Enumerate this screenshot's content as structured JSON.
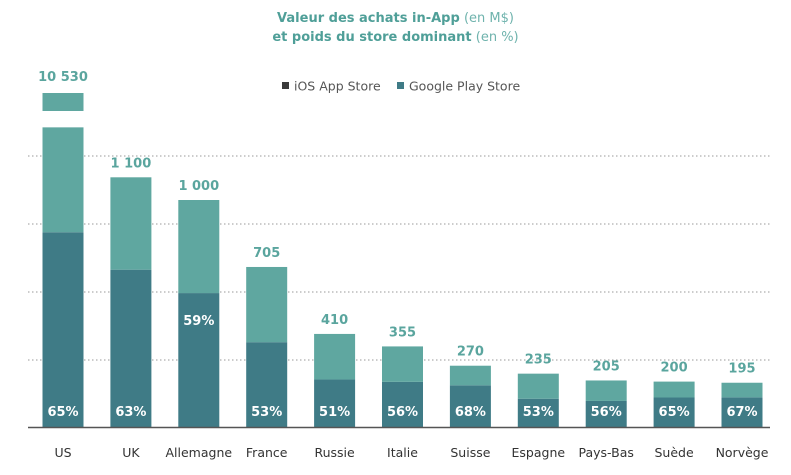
{
  "chart_data": {
    "type": "bar",
    "title_line1": "Valeur des achats in-App",
    "title_line1_unit": "(en M$)",
    "title_line2": "et poids du store dominant",
    "title_line2_unit": "(en %)",
    "legend": [
      {
        "name": "iOS App Store",
        "color": "#3a3a3a"
      },
      {
        "name": "Google Play Store",
        "color": "#3f7b86"
      }
    ],
    "colors": {
      "dominant": "#3f7b86",
      "other": "#5fa7a0",
      "total_label": "#5aa59e",
      "axis": "#555555"
    },
    "categories": [
      "US",
      "UK",
      "Allemagne",
      "France",
      "Russie",
      "Italie",
      "Suisse",
      "Espagne",
      "Pays-Bas",
      "Suède",
      "Norvège"
    ],
    "totals": [
      10530,
      1100,
      1000,
      705,
      410,
      355,
      270,
      235,
      205,
      200,
      195
    ],
    "total_labels": [
      "10 530",
      "1 100",
      "1 000",
      "705",
      "410",
      "355",
      "270",
      "235",
      "205",
      "200",
      "195"
    ],
    "dominant_share": [
      65,
      63,
      59,
      53,
      51,
      56,
      68,
      53,
      56,
      65,
      67
    ],
    "share_labels": [
      "65%",
      "63%",
      "59%",
      "53%",
      "51%",
      "56%",
      "68%",
      "53%",
      "56%",
      "65%",
      "67%"
    ],
    "y_axis_break": true,
    "grid": true
  }
}
